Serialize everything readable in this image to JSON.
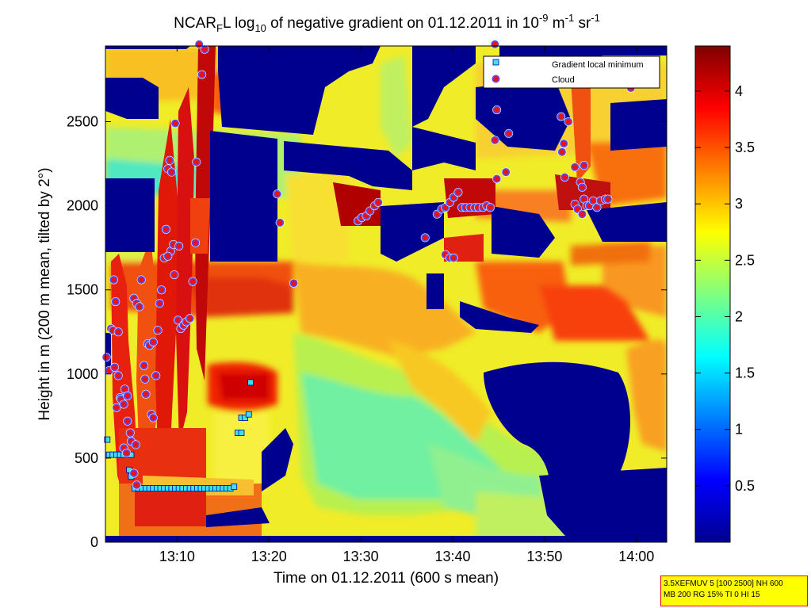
{
  "chart_data": {
    "type": "heatmap",
    "title": {
      "part1": "NCAR",
      "sub1": "F",
      "part2": "L log",
      "sub2": "10",
      "part3": " of negative gradient on 01.12.2011 in 10",
      "sup1": "-9",
      "part4": " m",
      "sup2": "-1",
      "part5": " sr",
      "sup3": "-1"
    },
    "xlabel": "Time on 01.12.2011 (600 s mean)",
    "ylabel": "Height in m (200 m mean, tilted by 2°)",
    "x_ticks": [
      "13:10",
      "13:20",
      "13:30",
      "13:40",
      "13:50",
      "14:00"
    ],
    "x_tick_minutes": [
      10,
      20,
      30,
      40,
      50,
      60
    ],
    "x_range_minutes": [
      2.2,
      63.3
    ],
    "y_ticks": [
      0,
      500,
      1000,
      1500,
      2000,
      2500
    ],
    "y_range": [
      0,
      2950
    ],
    "colorbar": {
      "range": [
        0,
        4.4
      ],
      "ticks": [
        "0.5",
        "1",
        "1.5",
        "2",
        "2.5",
        "3",
        "3.5",
        "4"
      ],
      "tick_values": [
        0.5,
        1,
        1.5,
        2,
        2.5,
        3,
        3.5,
        4
      ]
    },
    "legend": {
      "placement": "top-right",
      "entries": [
        "Gradient local minimum",
        "Cloud"
      ]
    },
    "series": [
      {
        "name": "Gradient local minimum",
        "points": [
          [
            2.4,
            610
          ],
          [
            2.6,
            520
          ],
          [
            3.0,
            520
          ],
          [
            3.4,
            520
          ],
          [
            3.8,
            520
          ],
          [
            4.2,
            520
          ],
          [
            4.6,
            520
          ],
          [
            5.0,
            520
          ],
          [
            4.8,
            430
          ],
          [
            5.0,
            390
          ],
          [
            5.4,
            320
          ],
          [
            5.8,
            320
          ],
          [
            6.2,
            320
          ],
          [
            6.6,
            320
          ],
          [
            7.0,
            320
          ],
          [
            7.4,
            320
          ],
          [
            7.8,
            320
          ],
          [
            8.2,
            320
          ],
          [
            8.6,
            320
          ],
          [
            9.0,
            320
          ],
          [
            9.4,
            320
          ],
          [
            9.8,
            320
          ],
          [
            10.2,
            320
          ],
          [
            10.6,
            320
          ],
          [
            11.0,
            320
          ],
          [
            11.4,
            320
          ],
          [
            11.8,
            320
          ],
          [
            12.2,
            320
          ],
          [
            12.6,
            320
          ],
          [
            13.0,
            320
          ],
          [
            13.4,
            320
          ],
          [
            13.8,
            320
          ],
          [
            14.2,
            320
          ],
          [
            14.6,
            320
          ],
          [
            15.0,
            320
          ],
          [
            15.4,
            320
          ],
          [
            15.8,
            320
          ],
          [
            16.2,
            330
          ],
          [
            16.6,
            650
          ],
          [
            17.0,
            650
          ],
          [
            17.0,
            740
          ],
          [
            17.4,
            740
          ],
          [
            17.8,
            760
          ],
          [
            18.0,
            950
          ]
        ]
      },
      {
        "name": "Cloud",
        "points": [
          [
            2.3,
            1100
          ],
          [
            2.6,
            1020
          ],
          [
            2.8,
            1270
          ],
          [
            3.1,
            1560
          ],
          [
            3.3,
            1430
          ],
          [
            3.0,
            1260
          ],
          [
            3.6,
            1250
          ],
          [
            3.2,
            1040
          ],
          [
            3.6,
            990
          ],
          [
            3.8,
            860
          ],
          [
            3.9,
            850
          ],
          [
            3.4,
            800
          ],
          [
            4.2,
            820
          ],
          [
            4.2,
            560
          ],
          [
            4.5,
            530
          ],
          [
            4.6,
            720
          ],
          [
            4.3,
            910
          ],
          [
            4.6,
            870
          ],
          [
            4.9,
            650
          ],
          [
            5.0,
            600
          ],
          [
            5.5,
            580
          ],
          [
            5.3,
            410
          ],
          [
            5.6,
            340
          ],
          [
            5.3,
            1450
          ],
          [
            5.6,
            1420
          ],
          [
            5.9,
            1400
          ],
          [
            6.1,
            1560
          ],
          [
            6.4,
            1050
          ],
          [
            6.5,
            970
          ],
          [
            6.6,
            880
          ],
          [
            6.8,
            1180
          ],
          [
            7.0,
            1170
          ],
          [
            7.4,
            1190
          ],
          [
            7.2,
            760
          ],
          [
            7.4,
            740
          ],
          [
            7.7,
            990
          ],
          [
            7.9,
            1260
          ],
          [
            8.1,
            1420
          ],
          [
            8.3,
            1500
          ],
          [
            8.6,
            1690
          ],
          [
            8.8,
            1860
          ],
          [
            9.0,
            2220
          ],
          [
            9.2,
            2270
          ],
          [
            9.4,
            2200
          ],
          [
            9.3,
            1730
          ],
          [
            9.0,
            1700
          ],
          [
            9.8,
            2490
          ],
          [
            9.6,
            1770
          ],
          [
            10.2,
            1760
          ],
          [
            9.7,
            1590
          ],
          [
            10.1,
            1320
          ],
          [
            10.4,
            1270
          ],
          [
            10.7,
            1290
          ],
          [
            11.0,
            1310
          ],
          [
            11.4,
            1330
          ],
          [
            11.7,
            1550
          ],
          [
            12.0,
            1780
          ],
          [
            12.1,
            2260
          ],
          [
            12.4,
            2960
          ],
          [
            12.7,
            2780
          ],
          [
            13.0,
            2930
          ],
          [
            20.9,
            2070
          ],
          [
            21.2,
            1900
          ],
          [
            22.7,
            1540
          ],
          [
            29.7,
            1910
          ],
          [
            30.1,
            1930
          ],
          [
            30.6,
            1940
          ],
          [
            31.0,
            1970
          ],
          [
            31.5,
            2000
          ],
          [
            31.9,
            2020
          ],
          [
            37.0,
            1810
          ],
          [
            38.3,
            1950
          ],
          [
            38.8,
            1980
          ],
          [
            39.2,
            1990
          ],
          [
            39.7,
            2020
          ],
          [
            40.1,
            2050
          ],
          [
            40.6,
            2080
          ],
          [
            39.2,
            1710
          ],
          [
            39.7,
            1690
          ],
          [
            40.1,
            1690
          ],
          [
            41.0,
            1990
          ],
          [
            41.4,
            1990
          ],
          [
            41.9,
            1990
          ],
          [
            42.4,
            1990
          ],
          [
            42.8,
            1990
          ],
          [
            43.3,
            1990
          ],
          [
            43.7,
            2000
          ],
          [
            44.1,
            1990
          ],
          [
            44.6,
            2390
          ],
          [
            44.8,
            2570
          ],
          [
            44.8,
            2160
          ],
          [
            44.6,
            2960
          ],
          [
            45.8,
            2200
          ],
          [
            46.1,
            2430
          ],
          [
            51.8,
            2530
          ],
          [
            51.9,
            2320
          ],
          [
            52.1,
            2370
          ],
          [
            52.2,
            2170
          ],
          [
            52.6,
            2500
          ],
          [
            53.3,
            2230
          ],
          [
            53.3,
            2010
          ],
          [
            53.6,
            1980
          ],
          [
            53.9,
            2140
          ],
          [
            54.1,
            2110
          ],
          [
            54.1,
            1950
          ],
          [
            54.3,
            2240
          ],
          [
            54.3,
            2040
          ],
          [
            54.6,
            2000
          ],
          [
            54.9,
            2000
          ],
          [
            55.3,
            2030
          ],
          [
            55.7,
            1990
          ],
          [
            56.1,
            2030
          ],
          [
            56.6,
            2040
          ],
          [
            56.9,
            2040
          ],
          [
            59.4,
            2700
          ]
        ]
      }
    ]
  },
  "info": {
    "line1": "3.5XEFMUV 5 [100 2500] NH 600",
    "line2": "MB 200 RG 15% TI 0 HI 15"
  }
}
